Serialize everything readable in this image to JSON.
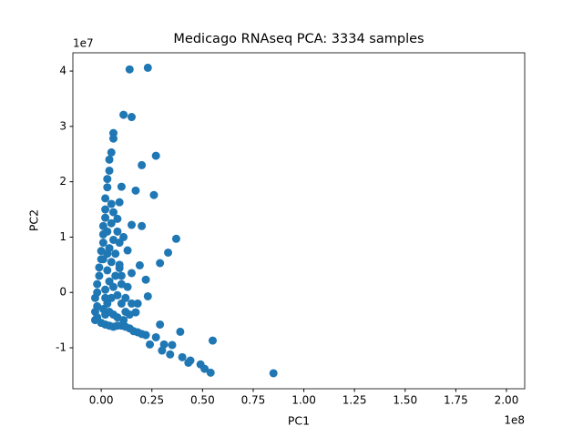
{
  "chart_data": {
    "type": "scatter",
    "title": "Medicago RNAseq PCA: 3334 samples",
    "x_label": "PC1",
    "y_label": "PC2",
    "x_offset": "1e8",
    "y_offset": "1e7",
    "color": "#1f77b4",
    "grid": false,
    "xlim": [
      -0.14,
      2.09
    ],
    "ylim": [
      -1.74,
      4.33
    ],
    "xticks": [
      {
        "value": 0,
        "label": "0.00"
      },
      0.25,
      {
        "value": 0.5,
        "label": "0.50"
      },
      0.75,
      {
        "value": 1,
        "label": "1.00"
      },
      1.25,
      {
        "value": 1.5,
        "label": "1.50"
      },
      1.75,
      {
        "value": 2,
        "label": "2.00"
      }
    ],
    "yticks": [
      -1,
      0,
      1,
      2,
      3,
      4
    ],
    "x": [
      0.14,
      0.23,
      0.11,
      0.15,
      0.06,
      0.06,
      0.27,
      0.2,
      0.05,
      0.04,
      0.17,
      0.1,
      0.26,
      0.09,
      0.15,
      0.2,
      0.08,
      0.37,
      0.33,
      0.13,
      0.29,
      0.19,
      0.15,
      0.22,
      0.09,
      0.23,
      0.18,
      0.17,
      0.29,
      0.39,
      0.55,
      0.31,
      0.35,
      0.24,
      0.3,
      0.34,
      0.4,
      0.44,
      0.49,
      0.51,
      0.54,
      0.85,
      0.43,
      0.27,
      0.22,
      0.18,
      -0.03,
      -0.02,
      -0.03,
      -0.02,
      -0.03,
      -0.02,
      -0.02,
      -0.01,
      -0.01,
      0.0,
      0.0,
      0.01,
      0.01,
      0.01,
      0.02,
      0.02,
      0.02,
      0.03,
      0.03,
      0.04,
      0.0,
      0.02,
      0.04,
      0.06,
      0.08,
      0.1,
      0.12,
      0.14,
      0.16,
      0.2,
      0.01,
      0.03,
      0.05,
      0.02,
      0.04,
      0.06,
      0.08,
      0.1,
      0.12,
      0.03,
      0.05,
      0.07,
      0.04,
      0.06,
      0.03,
      0.05,
      0.07,
      0.09,
      0.1,
      0.12,
      0.14,
      0.08,
      0.06,
      0.02,
      0.04,
      0.09,
      0.11,
      0.06,
      0.08,
      0.05,
      0.1,
      0.13,
      0.15,
      0.11,
      0.01,
      0.03,
      0.02
    ],
    "values": [
      4.03,
      4.06,
      3.21,
      3.17,
      2.88,
      2.78,
      2.47,
      2.3,
      2.53,
      2.4,
      1.84,
      1.91,
      1.76,
      1.63,
      1.22,
      1.2,
      1.33,
      0.97,
      0.72,
      0.76,
      0.53,
      0.49,
      0.35,
      0.23,
      0.44,
      -0.07,
      -0.2,
      -0.36,
      -0.58,
      -0.71,
      -0.87,
      -0.94,
      -0.95,
      -0.94,
      -1.05,
      -1.12,
      -1.17,
      -1.23,
      -1.3,
      -1.38,
      -1.45,
      -1.46,
      -1.27,
      -0.81,
      -0.77,
      -0.72,
      -0.5,
      -0.45,
      -0.35,
      -0.25,
      -0.1,
      0.0,
      0.15,
      0.3,
      0.45,
      0.6,
      0.75,
      0.9,
      1.05,
      1.2,
      1.35,
      1.5,
      1.7,
      1.9,
      2.05,
      2.2,
      -0.55,
      -0.58,
      -0.6,
      -0.62,
      -0.6,
      -0.6,
      -0.62,
      -0.65,
      -0.7,
      -0.75,
      -0.3,
      -0.2,
      -0.1,
      0.05,
      0.2,
      0.1,
      -0.05,
      -0.2,
      -0.35,
      0.4,
      0.55,
      0.3,
      0.8,
      0.95,
      1.1,
      1.25,
      0.7,
      0.5,
      0.15,
      -0.1,
      -0.4,
      -0.45,
      -0.4,
      -0.4,
      -0.35,
      0.9,
      1.0,
      1.45,
      1.1,
      1.6,
      0.3,
      0.1,
      -0.2,
      -0.5,
      0.6,
      0.7,
      -0.1
    ]
  }
}
